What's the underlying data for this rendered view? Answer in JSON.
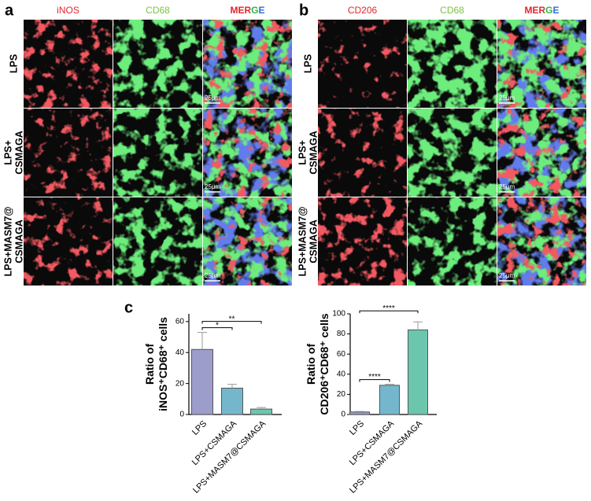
{
  "panels": [
    {
      "label": "a",
      "columns": [
        "iNOS",
        "CD68",
        "MERGE"
      ],
      "rows": [
        [
          "LPS"
        ],
        [
          "LPS+",
          "CSMAGA"
        ],
        [
          "LPS+MASM7@",
          "CSMAGA"
        ]
      ],
      "scale_bar": "25μm"
    },
    {
      "label": "b",
      "columns": [
        "CD206",
        "CD68",
        "MERGE"
      ],
      "rows": [
        [
          "LPS"
        ],
        [
          "LPS+",
          "CSMAGA"
        ],
        [
          "LPS+MASM7@",
          "CSMAGA"
        ]
      ],
      "scale_bar": "25μm"
    }
  ],
  "chart_label": "c",
  "chart_data": [
    {
      "type": "bar",
      "y_label": [
        "Ratio of",
        "iNOS⁺CD68⁺ cells"
      ],
      "categories": [
        "LPS",
        "LPS+CSMAGA",
        "LPS+MASM7@CSMAGA"
      ],
      "values": [
        42,
        17,
        3.5
      ],
      "errors": [
        11,
        2.5,
        1
      ],
      "colors": [
        "#9c9dcb",
        "#74b7cc",
        "#6cc6ad"
      ],
      "ylim": [
        0,
        65
      ],
      "yticks": [
        0,
        20,
        40,
        60
      ],
      "annotations": [
        {
          "label": "*",
          "between": [
            "LPS",
            "LPS+CSMAGA"
          ]
        },
        {
          "label": "**",
          "between": [
            "LPS",
            "LPS+MASM7@CSMAGA"
          ]
        }
      ]
    },
    {
      "type": "bar",
      "y_label": [
        "Ratio of",
        "CD206⁺CD68⁺ cells"
      ],
      "categories": [
        "LPS",
        "LPS+CSMAGA",
        "LPS+MASM7@CSMAGA"
      ],
      "values": [
        2.5,
        29,
        84
      ],
      "errors": [
        0.5,
        1,
        8
      ],
      "colors": [
        "#9c9dcb",
        "#74b7cc",
        "#6cc6ad"
      ],
      "ylim": [
        0,
        100
      ],
      "yticks": [
        0,
        20,
        40,
        60,
        80,
        100
      ],
      "annotations": [
        {
          "label": "****",
          "between": [
            "LPS",
            "LPS+CSMAGA"
          ]
        },
        {
          "label": "****",
          "between": [
            "LPS",
            "LPS+MASM7@CSMAGA"
          ]
        }
      ]
    }
  ]
}
